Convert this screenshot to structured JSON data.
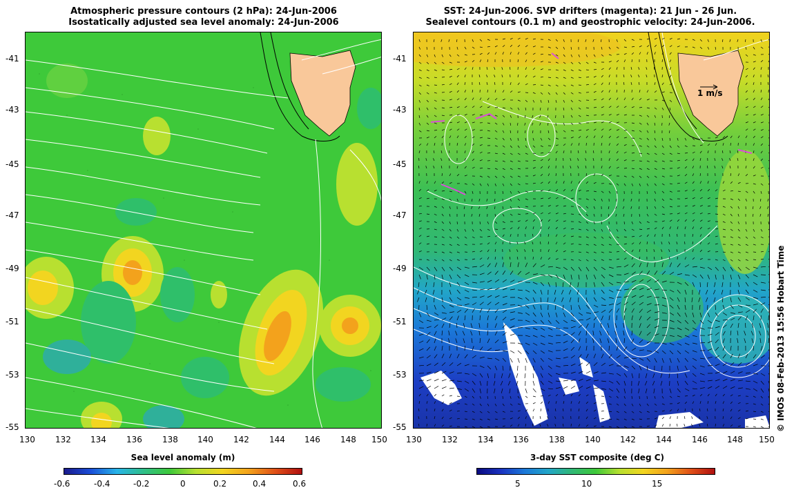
{
  "left_panel": {
    "title_line1": "Atmospheric pressure contours (2 hPa): 24-Jun-2006",
    "title_line2": "Isostatically adjusted sea level anomaly: 24-Jun-2006",
    "colorbar_label": "Sea level anomaly (m)",
    "colorbar_ticks": [
      "-0.6",
      "-0.4",
      "-0.2",
      "0",
      "0.2",
      "0.4",
      "0.6"
    ],
    "colorbar_range": [
      -0.6,
      0.6
    ]
  },
  "right_panel": {
    "title_line1": "SST: 24-Jun-2006. SVP drifters (magenta): 21 Jun - 26 Jun.",
    "title_line2": "Sealevel contours (0.1 m) and geostrophic velocity: 24-Jun-2006.",
    "colorbar_label": "3-day SST composite (deg C)",
    "colorbar_ticks": [
      "5",
      "10",
      "15"
    ],
    "colorbar_tick_values": [
      5,
      10,
      15
    ],
    "colorbar_range": [
      1,
      19
    ],
    "velocity_scale_label": "1 m/s"
  },
  "axes": {
    "lat_ticks": [
      "-41",
      "-43",
      "-45",
      "-47",
      "-49",
      "-51",
      "-53",
      "-55"
    ],
    "lat_values": [
      -41,
      -43,
      -45,
      -47,
      -49,
      -51,
      -53,
      -55
    ],
    "lat_range": [
      -55,
      -40.3
    ],
    "lon_ticks": [
      "130",
      "132",
      "134",
      "136",
      "138",
      "140",
      "142",
      "144",
      "146",
      "148",
      "150"
    ],
    "lon_values": [
      130,
      132,
      134,
      136,
      138,
      140,
      142,
      144,
      146,
      148,
      150
    ],
    "lon_range": [
      130,
      150
    ]
  },
  "credit": "© IMOS 08-Feb-2013 15:56 Hobart Time",
  "colors": {
    "land": "#f9c89a",
    "ocean_left": "#3ec93a",
    "contour": "#ffffff",
    "drifter": "#d94fd9"
  }
}
